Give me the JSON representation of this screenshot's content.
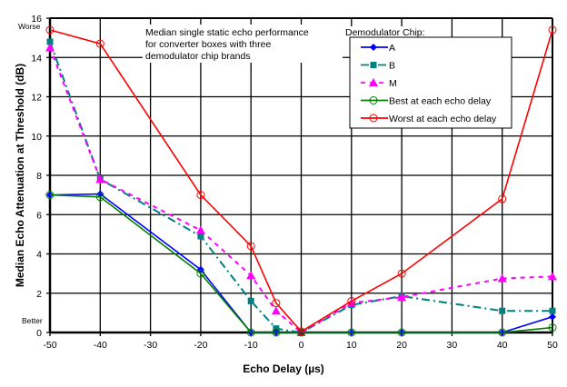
{
  "chart_data": {
    "type": "line",
    "xlabel": "Echo Delay (µs)",
    "ylabel": "Median Echo Attenuation at Threshold (dB)",
    "xlim": [
      -50,
      50
    ],
    "ylim": [
      0,
      16
    ],
    "x_ticks": [
      -50,
      -40,
      -30,
      -20,
      -10,
      0,
      10,
      20,
      30,
      40,
      50
    ],
    "y_ticks": [
      0,
      2,
      4,
      6,
      8,
      10,
      12,
      14,
      16
    ],
    "grid": true,
    "annotation": [
      "Median single static echo performance",
      "for converter boxes with three",
      "demodulator chip brands"
    ],
    "worse_label": "Worse",
    "better_label": "Better",
    "legend_title": "Demodulator Chip:",
    "legend_position": "top-right",
    "x": [
      -50,
      -40,
      -20,
      -10,
      -5,
      0,
      10,
      20,
      40,
      50
    ],
    "series": [
      {
        "name": "A",
        "color": "#0000ff",
        "marker": "diamond",
        "dash": "solid",
        "values": [
          7.0,
          7.05,
          3.2,
          0,
          0,
          0,
          0,
          0,
          0,
          0.8
        ]
      },
      {
        "name": "B",
        "color": "#008080",
        "marker": "square",
        "dash": "dashed",
        "values": [
          14.8,
          7.8,
          4.9,
          1.6,
          0.2,
          0,
          1.4,
          1.85,
          1.1,
          1.1
        ]
      },
      {
        "name": "M",
        "color": "#ff00ff",
        "marker": "triangle",
        "dash": "dashed",
        "values": [
          14.5,
          7.8,
          5.2,
          2.9,
          1.1,
          0,
          1.5,
          1.8,
          2.75,
          2.85
        ]
      },
      {
        "name": "Best at each echo delay",
        "color": "#008000",
        "marker": "circle-open",
        "dash": "solid",
        "values": [
          7.0,
          6.9,
          3.0,
          0,
          0,
          0,
          0,
          0,
          0,
          0.25
        ]
      },
      {
        "name": "Worst at each echo delay",
        "color": "#ff0000",
        "marker": "circle-open",
        "dash": "solid",
        "values": [
          15.4,
          14.7,
          7.0,
          4.4,
          1.5,
          0.05,
          1.6,
          3.0,
          6.8,
          15.4
        ]
      }
    ]
  }
}
